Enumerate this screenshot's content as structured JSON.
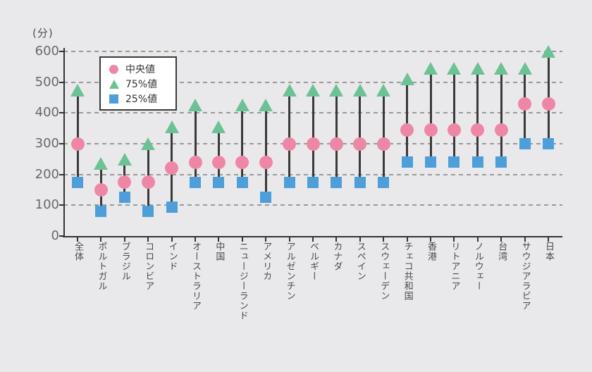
{
  "unit_label": "(分)",
  "chart_data": {
    "type": "scatter",
    "subtype": "percentile-range-dot-plot",
    "title": "",
    "ylabel": "(分)",
    "xlabel": "",
    "ylim": [
      0,
      600
    ],
    "yticks": [
      0,
      100,
      200,
      300,
      400,
      500,
      600
    ],
    "grid": "horizontal-dashed",
    "legend_position": "top-left-inside",
    "legend": [
      {
        "key": "median",
        "label": "中央値",
        "marker": "circle",
        "color": "#ee87a6"
      },
      {
        "key": "p75",
        "label": "75%値",
        "marker": "triangle-up",
        "color": "#6cc295"
      },
      {
        "key": "p25",
        "label": "25%値",
        "marker": "square",
        "color": "#4e9fd9"
      }
    ],
    "categories": [
      "全体",
      "ポルトガル",
      "ブラジル",
      "コロンビア",
      "インド",
      "オーストラリア",
      "中国",
      "ニュージーランド",
      "アメリカ",
      "アルゼンチン",
      "ベルギー",
      "カナダ",
      "スペイン",
      "スウェーデン",
      "チェコ共和国",
      "香港",
      "リトアニア",
      "ノルウェー",
      "台湾",
      "サウジアラビア",
      "日本"
    ],
    "series": [
      {
        "name": "中央値",
        "values": [
          300,
          150,
          175,
          175,
          220,
          240,
          240,
          240,
          240,
          300,
          300,
          300,
          300,
          300,
          345,
          345,
          345,
          345,
          345,
          430,
          430
        ]
      },
      {
        "name": "75%値",
        "values": [
          475,
          235,
          250,
          300,
          355,
          425,
          355,
          425,
          425,
          475,
          475,
          475,
          475,
          475,
          510,
          545,
          545,
          545,
          545,
          545,
          600
        ]
      },
      {
        "name": "25%値",
        "values": [
          175,
          80,
          125,
          80,
          95,
          175,
          175,
          175,
          125,
          175,
          175,
          175,
          175,
          175,
          240,
          240,
          240,
          240,
          240,
          300,
          300
        ]
      }
    ],
    "stem_color": "#3a3a3a",
    "colors": {
      "background": "#e9e9eb",
      "grid": "#9a9a9a",
      "axis": "#333333",
      "tick_text": "#686868",
      "category_text": "#4a4a4a"
    }
  }
}
